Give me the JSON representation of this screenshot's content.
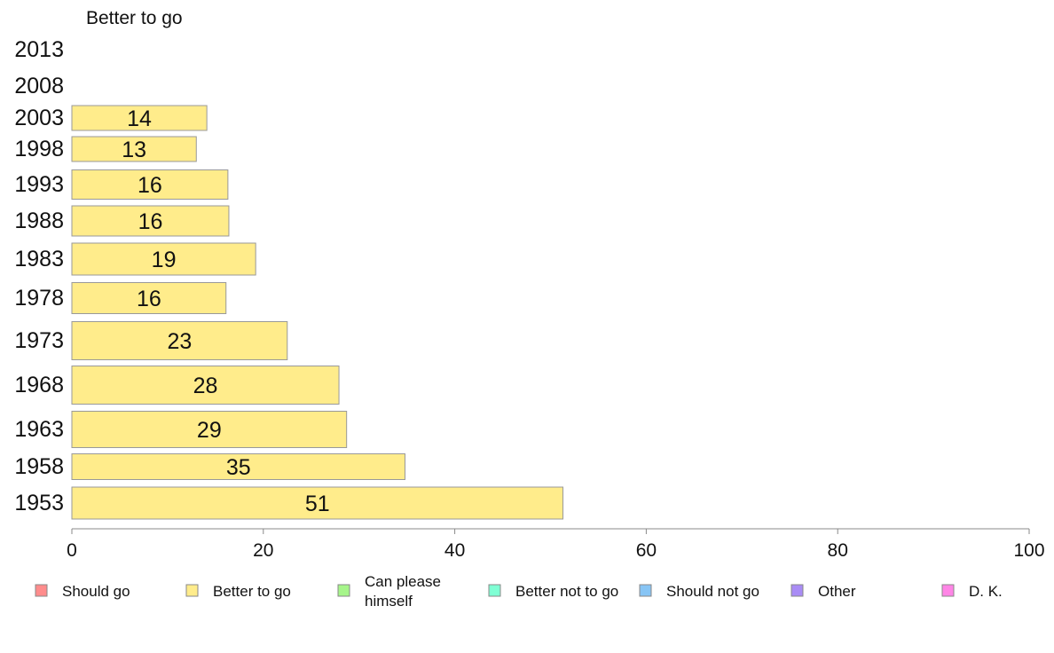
{
  "chart_data": {
    "type": "bar",
    "orientation": "horizontal",
    "panel_title": "Better to go",
    "categories": [
      "2013",
      "2008",
      "2003",
      "1998",
      "1993",
      "1988",
      "1983",
      "1978",
      "1973",
      "1968",
      "1963",
      "1958",
      "1953"
    ],
    "series": [
      {
        "name": "Better to go",
        "color": "#ffec8b",
        "values": [
          null,
          null,
          14.1,
          13.0,
          16.3,
          16.4,
          19.2,
          16.1,
          22.5,
          27.9,
          28.7,
          34.8,
          51.3
        ],
        "labels": [
          "",
          "",
          "14",
          "13",
          "16",
          "16",
          "19",
          "16",
          "23",
          "28",
          "29",
          "35",
          "51"
        ]
      }
    ],
    "xlim": [
      0,
      100
    ],
    "xticks": [
      0,
      20,
      40,
      60,
      80,
      100
    ],
    "xtick_labels": [
      "0",
      "20",
      "40",
      "60",
      "80",
      "100"
    ],
    "grid": false,
    "legend_position": "bottom",
    "legend": [
      {
        "lines": [
          "Should go"
        ],
        "color": "#ff8c8c"
      },
      {
        "lines": [
          "Better to go"
        ],
        "color": "#ffec8b"
      },
      {
        "lines": [
          "Can please",
          "himself"
        ],
        "color": "#a6f58a"
      },
      {
        "lines": [
          "Better not to go"
        ],
        "color": "#7fffd4"
      },
      {
        "lines": [
          "Should not go"
        ],
        "color": "#87c5f5"
      },
      {
        "lines": [
          "Other"
        ],
        "color": "#a98cf5"
      },
      {
        "lines": [
          "D. K."
        ],
        "color": "#ff85e6"
      }
    ]
  }
}
